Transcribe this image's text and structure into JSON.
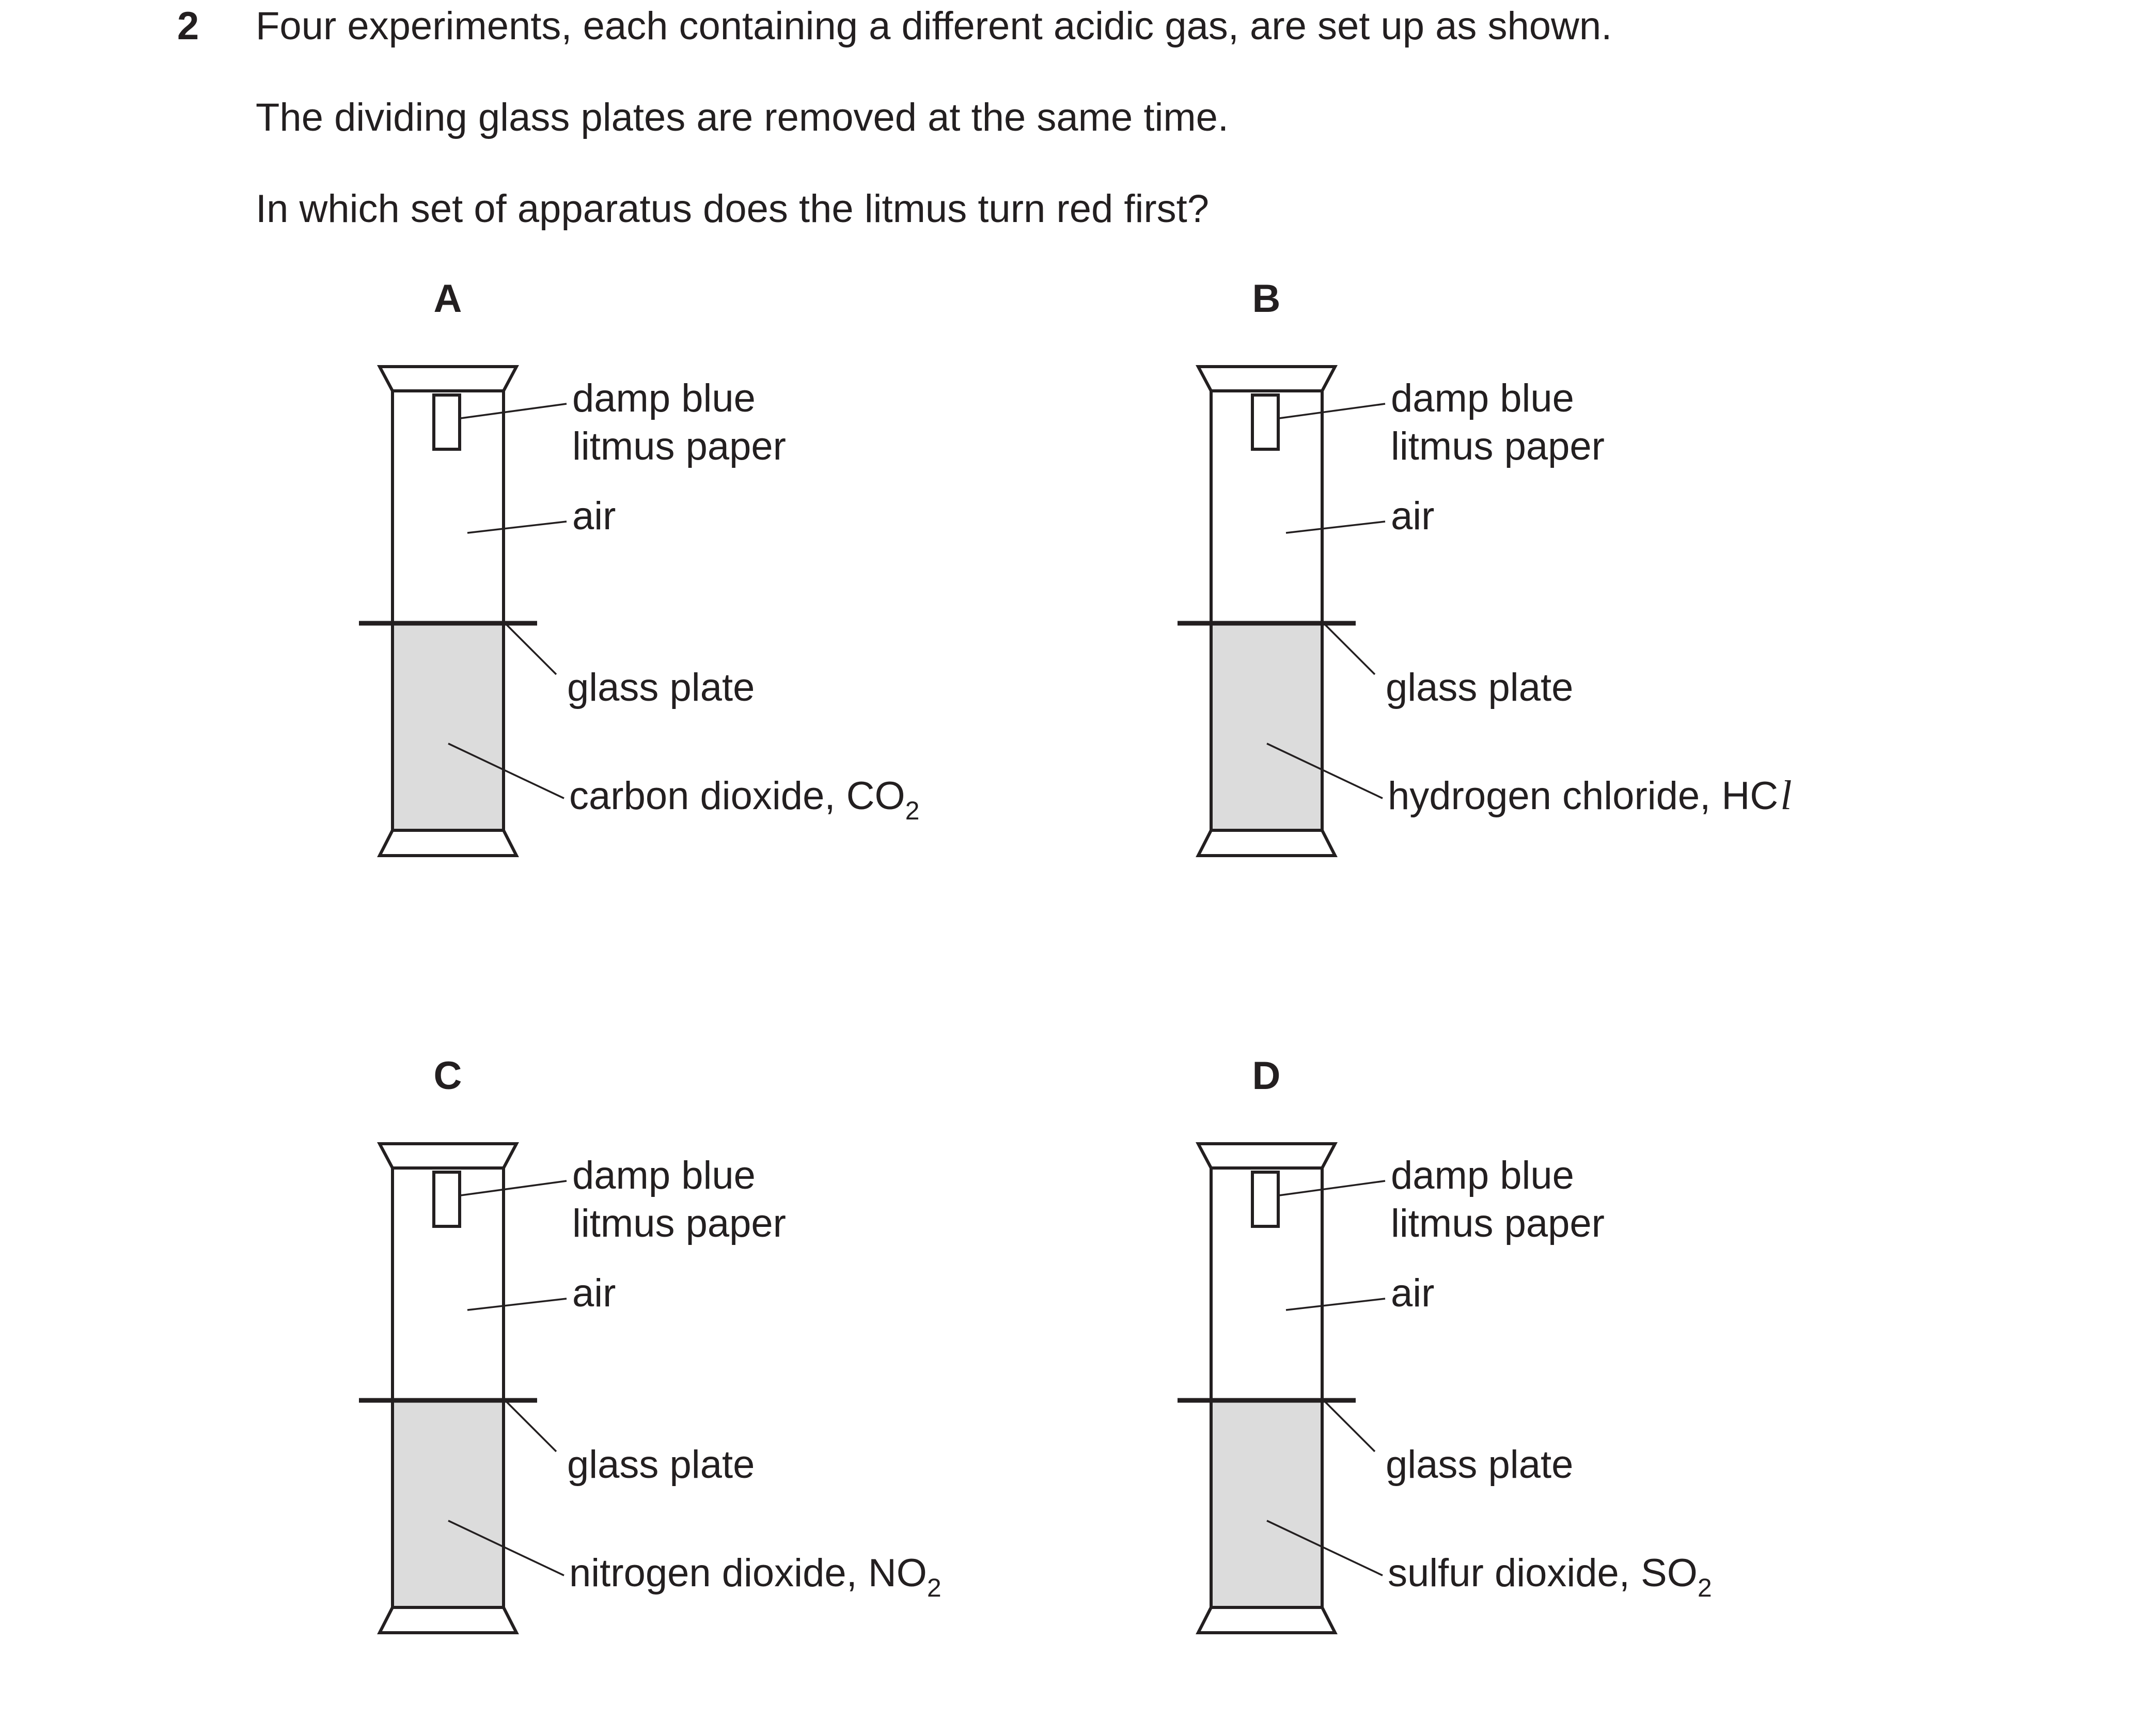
{
  "question": {
    "number": "2",
    "lines": [
      "Four experiments, each containing a different acidic gas, are set up as shown.",
      "The dividing glass plates are removed at the same time.",
      "In which set of apparatus does the litmus turn red first?"
    ]
  },
  "common_labels": {
    "litmus_line1": "damp blue",
    "litmus_line2": "litmus paper",
    "air": "air",
    "glass_plate": "glass plate"
  },
  "options": [
    {
      "letter": "A",
      "gas": "carbon dioxide, ",
      "formula": "CO",
      "subscript": "2",
      "suffix": ""
    },
    {
      "letter": "B",
      "gas": "hydrogen chloride, ",
      "formula": "HC",
      "subscript": "",
      "suffix": "l"
    },
    {
      "letter": "C",
      "gas": "nitrogen dioxide, ",
      "formula": "NO",
      "subscript": "2",
      "suffix": ""
    },
    {
      "letter": "D",
      "gas": "sulfur dioxide, ",
      "formula": "SO",
      "subscript": "2",
      "suffix": ""
    }
  ],
  "colors": {
    "ink": "#231f20",
    "gas_fill": "#dcdcdc"
  }
}
